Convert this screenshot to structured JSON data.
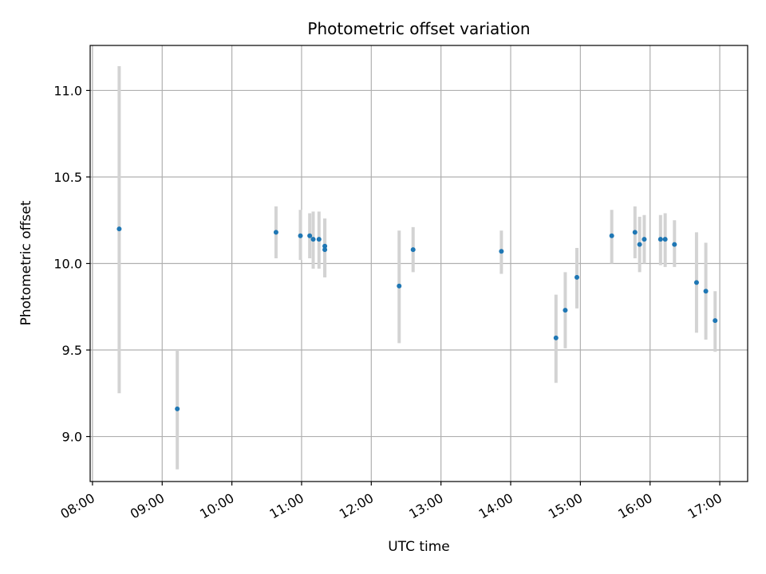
{
  "chart_data": {
    "type": "scatter",
    "title": "Photometric offset variation",
    "xlabel": "UTC time",
    "ylabel": "Photometric offset",
    "x_unit": "UTC time (HH:MM)",
    "xlim": [
      "07:58",
      "17:24"
    ],
    "ylim": [
      8.74,
      11.26
    ],
    "x_ticks": [
      "08:00",
      "09:00",
      "10:00",
      "11:00",
      "12:00",
      "13:00",
      "14:00",
      "15:00",
      "16:00",
      "17:00"
    ],
    "y_ticks": [
      9.0,
      9.5,
      10.0,
      10.5,
      11.0
    ],
    "y_tick_labels": [
      "9.0",
      "9.5",
      "10.0",
      "10.5",
      "11.0"
    ],
    "grid": true,
    "point_color": "#1f77b4",
    "errorbar_color": "#d3d3d3",
    "points": [
      {
        "x": "08:23",
        "y": 10.2,
        "err_low": 9.25,
        "err_high": 11.14
      },
      {
        "x": "09:13",
        "y": 9.16,
        "err_low": 8.81,
        "err_high": 9.5
      },
      {
        "x": "10:38",
        "y": 10.18,
        "err_low": 10.03,
        "err_high": 10.33
      },
      {
        "x": "10:59",
        "y": 10.16,
        "err_low": 10.02,
        "err_high": 10.31
      },
      {
        "x": "11:07",
        "y": 10.16,
        "err_low": 10.03,
        "err_high": 10.29
      },
      {
        "x": "11:10",
        "y": 10.14,
        "err_low": 9.97,
        "err_high": 10.3
      },
      {
        "x": "11:15",
        "y": 10.14,
        "err_low": 9.97,
        "err_high": 10.3
      },
      {
        "x": "11:20",
        "y": 10.1,
        "err_low": 9.92,
        "err_high": 10.26
      },
      {
        "x": "11:20",
        "y": 10.08,
        "err_low": 9.92,
        "err_high": 10.26
      },
      {
        "x": "12:24",
        "y": 9.87,
        "err_low": 9.54,
        "err_high": 10.19
      },
      {
        "x": "12:36",
        "y": 10.08,
        "err_low": 9.95,
        "err_high": 10.21
      },
      {
        "x": "13:52",
        "y": 10.07,
        "err_low": 9.94,
        "err_high": 10.19
      },
      {
        "x": "14:39",
        "y": 9.57,
        "err_low": 9.31,
        "err_high": 9.82
      },
      {
        "x": "14:47",
        "y": 9.73,
        "err_low": 9.51,
        "err_high": 9.95
      },
      {
        "x": "14:57",
        "y": 9.92,
        "err_low": 9.74,
        "err_high": 10.09
      },
      {
        "x": "15:27",
        "y": 10.16,
        "err_low": 10.0,
        "err_high": 10.31
      },
      {
        "x": "15:47",
        "y": 10.18,
        "err_low": 10.03,
        "err_high": 10.33
      },
      {
        "x": "15:51",
        "y": 10.11,
        "err_low": 9.95,
        "err_high": 10.27
      },
      {
        "x": "15:55",
        "y": 10.14,
        "err_low": 10.0,
        "err_high": 10.28
      },
      {
        "x": "16:09",
        "y": 10.14,
        "err_low": 9.99,
        "err_high": 10.28
      },
      {
        "x": "16:13",
        "y": 10.14,
        "err_low": 9.98,
        "err_high": 10.29
      },
      {
        "x": "16:21",
        "y": 10.11,
        "err_low": 9.98,
        "err_high": 10.25
      },
      {
        "x": "16:40",
        "y": 9.89,
        "err_low": 9.6,
        "err_high": 10.18
      },
      {
        "x": "16:48",
        "y": 9.84,
        "err_low": 9.56,
        "err_high": 10.12
      },
      {
        "x": "16:56",
        "y": 9.67,
        "err_low": 9.49,
        "err_high": 9.84
      }
    ]
  }
}
